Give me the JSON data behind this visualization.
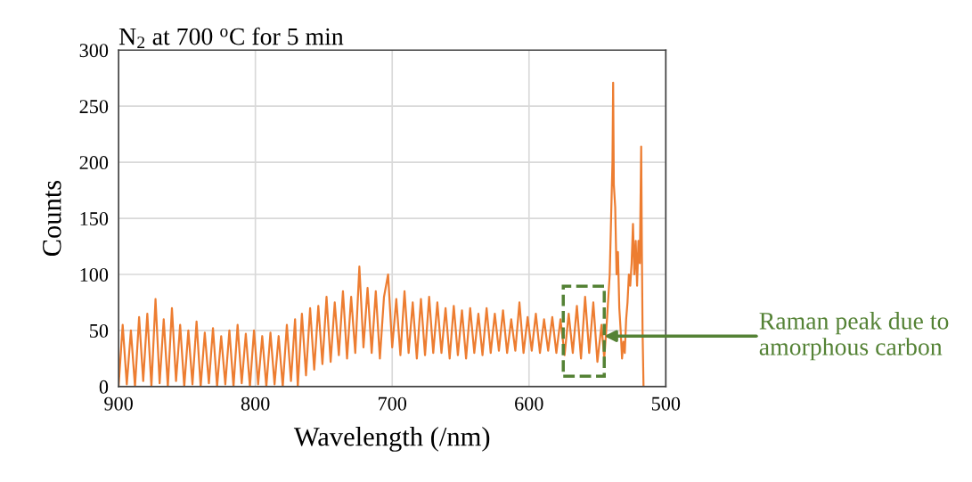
{
  "chart_data": {
    "type": "line",
    "title": "N$_{2}$ at 700 $^{o}$C for 5 min",
    "xlabel": "Wavelength (/nm)",
    "ylabel": "Counts",
    "xlim": [
      900,
      500
    ],
    "xticks": [
      900,
      800,
      700,
      600,
      500
    ],
    "ylim": [
      0,
      300
    ],
    "yticks": [
      0,
      50,
      100,
      150,
      200,
      250,
      300
    ],
    "grid": true,
    "legend": false,
    "marker": "none",
    "line_style": "solid",
    "series": [
      {
        "color": "#ed7d31",
        "x": [
          900,
          897,
          894,
          891,
          888,
          885,
          882,
          879,
          876,
          873,
          870,
          867,
          864,
          861,
          858,
          855,
          852,
          849,
          846,
          843,
          840,
          837,
          834,
          831,
          828,
          825,
          822,
          819,
          816,
          813,
          810,
          807,
          804,
          801,
          798,
          795,
          792,
          789,
          786,
          783,
          780,
          777,
          774,
          771,
          769,
          766,
          763,
          760,
          757,
          754,
          751,
          748,
          745,
          742,
          739,
          736,
          733,
          730,
          727,
          724,
          721,
          718,
          715,
          712,
          709,
          706,
          703,
          700,
          697,
          694,
          691,
          688,
          685,
          682,
          679,
          676,
          673,
          670,
          667,
          664,
          661,
          658,
          655,
          652,
          649,
          646,
          643,
          640,
          637,
          634,
          631,
          628,
          625,
          622,
          619,
          616,
          613,
          610,
          607,
          604,
          601,
          598,
          595,
          592,
          589,
          586,
          583,
          580,
          577,
          574,
          571,
          568,
          565,
          562,
          559,
          556,
          553,
          550,
          547,
          545,
          543,
          541,
          540,
          539,
          538.5,
          538,
          537,
          536,
          535,
          534,
          533,
          532,
          531,
          530,
          529,
          528,
          527,
          526,
          525,
          524,
          523,
          522,
          521,
          520,
          519,
          518,
          517.5,
          517,
          516.3
        ],
        "values": [
          0,
          55,
          2,
          50,
          0,
          62,
          5,
          65,
          0,
          78,
          3,
          60,
          0,
          70,
          5,
          55,
          0,
          50,
          2,
          58,
          0,
          48,
          3,
          52,
          0,
          45,
          2,
          50,
          0,
          55,
          3,
          47,
          0,
          50,
          2,
          45,
          0,
          48,
          2,
          45,
          0,
          55,
          5,
          60,
          0,
          65,
          10,
          70,
          15,
          72,
          20,
          80,
          22,
          75,
          28,
          85,
          25,
          80,
          30,
          107,
          35,
          88,
          30,
          85,
          25,
          80,
          100,
          35,
          78,
          28,
          85,
          30,
          75,
          25,
          78,
          28,
          80,
          30,
          75,
          30,
          70,
          25,
          72,
          28,
          68,
          25,
          70,
          30,
          65,
          28,
          70,
          30,
          65,
          32,
          68,
          30,
          60,
          32,
          75,
          30,
          62,
          32,
          65,
          30,
          60,
          32,
          62,
          30,
          60,
          28,
          65,
          30,
          72,
          25,
          80,
          30,
          75,
          22,
          55,
          25,
          60,
          100,
          150,
          200,
          271,
          180,
          160,
          100,
          120,
          70,
          50,
          25,
          40,
          30,
          60,
          75,
          100,
          90,
          110,
          145,
          100,
          130,
          90,
          130,
          110,
          214,
          120,
          50,
          0
        ]
      }
    ],
    "annotations": [
      {
        "text": "Raman peak due to\namorphous carbon",
        "x": 545,
        "y": 45
      }
    ]
  }
}
